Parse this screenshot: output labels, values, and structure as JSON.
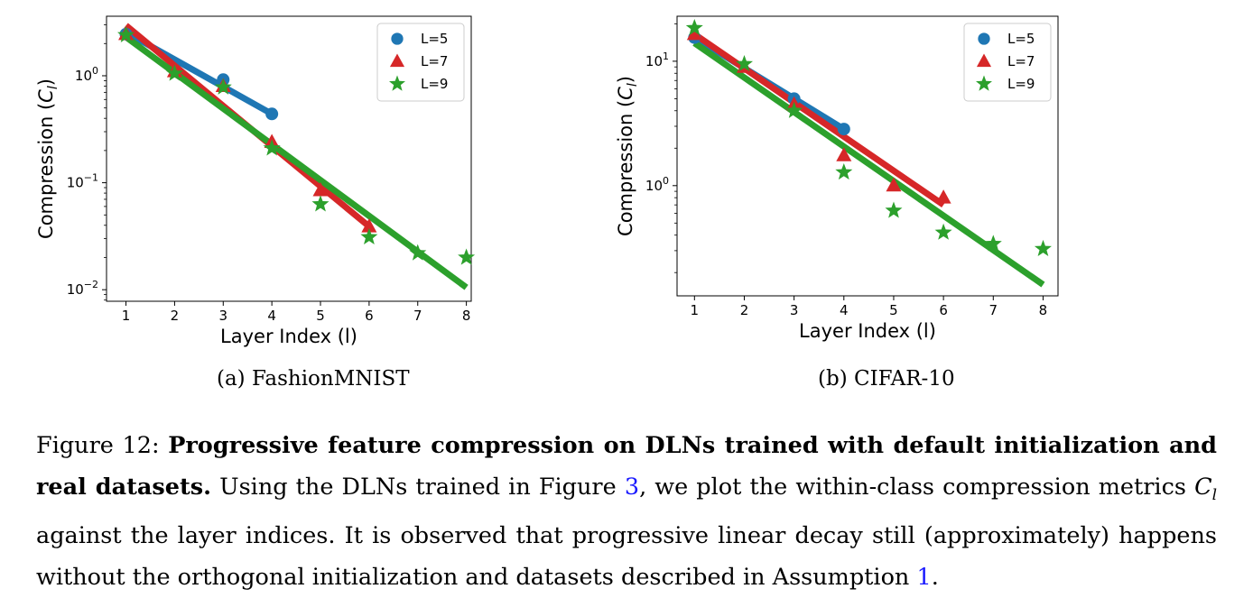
{
  "charts_meta": {
    "figure_number": "Figure 12:"
  },
  "chart_data": [
    {
      "type": "scatter",
      "subcaption": "(a) FashionMNIST",
      "xlabel": "Layer Index (l)",
      "ylabel_base": "Compression (",
      "ylabel_math": "C",
      "ylabel_sub": "l",
      "ylabel_end": ")",
      "x_ticks": [
        1,
        2,
        3,
        4,
        5,
        6,
        7,
        8
      ],
      "y_scale": "log",
      "y_ticks": [
        {
          "base": "10",
          "exp": "0",
          "value": 1
        },
        {
          "base": "10",
          "exp": "−1",
          "value": 0.1
        },
        {
          "base": "10",
          "exp": "−2",
          "value": 0.01
        }
      ],
      "xlim": [
        0.6,
        8.1
      ],
      "ylim": [
        0.0078,
        3.6
      ],
      "legend_position": "top-right",
      "series": [
        {
          "name": "L=5",
          "marker": "circle",
          "color": "#1f77b4",
          "x": [
            1,
            3,
            4
          ],
          "y": [
            2.45,
            0.92,
            0.44
          ],
          "fit": [
            [
              1,
              2.55
            ],
            [
              4,
              0.44
            ]
          ]
        },
        {
          "name": "L=7",
          "marker": "triangle",
          "color": "#d62728",
          "x": [
            1,
            2,
            3,
            4,
            5,
            6
          ],
          "y": [
            2.45,
            1.1,
            0.8,
            0.24,
            0.085,
            0.039
          ],
          "fit": [
            [
              1,
              2.95
            ],
            [
              6,
              0.039
            ]
          ]
        },
        {
          "name": "L=9",
          "marker": "star",
          "color": "#2ca02c",
          "x": [
            1,
            2,
            3,
            4,
            5,
            6,
            7,
            8
          ],
          "y": [
            2.4,
            1.05,
            0.78,
            0.21,
            0.063,
            0.031,
            0.022,
            0.02
          ],
          "fit": [
            [
              1,
              2.3
            ],
            [
              8,
              0.0105
            ]
          ]
        }
      ]
    },
    {
      "type": "scatter",
      "subcaption": "(b) CIFAR-10",
      "xlabel": "Layer Index (l)",
      "ylabel_base": "Compression (",
      "ylabel_math": "C",
      "ylabel_sub": "l",
      "ylabel_end": ")",
      "x_ticks": [
        1,
        2,
        3,
        4,
        5,
        6,
        7,
        8
      ],
      "y_scale": "log",
      "y_ticks": [
        {
          "base": "10",
          "exp": "1",
          "value": 10
        },
        {
          "base": "10",
          "exp": "0",
          "value": 1
        }
      ],
      "xlim": [
        0.65,
        8.3
      ],
      "ylim": [
        0.13,
        23
      ],
      "legend_position": "top-right",
      "series": [
        {
          "name": "L=5",
          "marker": "circle",
          "color": "#1f77b4",
          "x": [
            1,
            3,
            4
          ],
          "y": [
            15.5,
            5.0,
            2.85
          ],
          "fit": [
            [
              1,
              15.5
            ],
            [
              4,
              2.85
            ]
          ]
        },
        {
          "name": "L=7",
          "marker": "triangle",
          "color": "#d62728",
          "x": [
            1,
            2,
            3,
            4,
            5,
            6
          ],
          "y": [
            16.5,
            9.0,
            4.5,
            1.75,
            1.0,
            0.8
          ],
          "fit": [
            [
              1,
              16.5
            ],
            [
              6,
              0.7
            ]
          ]
        },
        {
          "name": "L=9",
          "marker": "star",
          "color": "#2ca02c",
          "x": [
            1,
            2,
            3,
            4,
            5,
            6,
            7,
            8
          ],
          "y": [
            18.5,
            9.5,
            4.0,
            1.28,
            0.63,
            0.42,
            0.34,
            0.31
          ],
          "fit": [
            [
              1,
              14
            ],
            [
              8,
              0.16
            ]
          ]
        }
      ]
    }
  ],
  "caption": {
    "label": "Figure 12: ",
    "bold_title": "Progressive feature compression on DLNs trained with default initialization and real datasets.",
    "text_1": " Using the DLNs trained in Figure ",
    "ref_1": "3",
    "text_2": ", we plot the within-class compression metrics ",
    "math_c": "C",
    "math_sub": "l",
    "text_3": " against the layer indices. It is observed that progressive linear decay still (approximately) happens without the orthogonal initialization and datasets described in Assumption ",
    "ref_2": "1",
    "text_4": "."
  }
}
